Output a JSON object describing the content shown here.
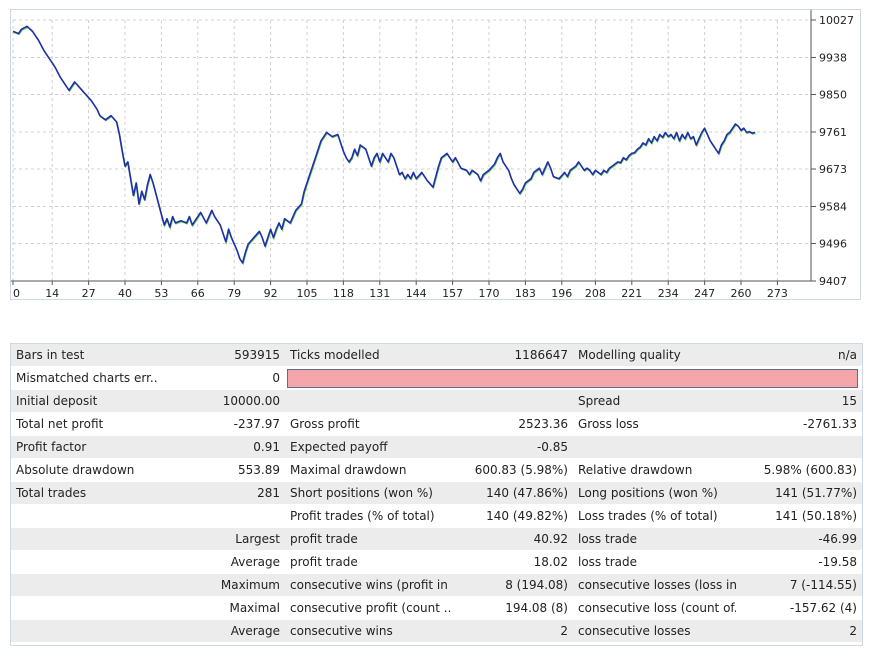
{
  "chart": {
    "y_ticks": [
      "10027",
      "9938",
      "9850",
      "9761",
      "9673",
      "9584",
      "9496",
      "9407"
    ],
    "x_ticks": [
      "0",
      "14",
      "27",
      "40",
      "53",
      "66",
      "79",
      "92",
      "105",
      "118",
      "131",
      "144",
      "157",
      "170",
      "183",
      "196",
      "208",
      "221",
      "234",
      "247",
      "260",
      "273"
    ],
    "colors": {
      "balance": "#1f2fa8",
      "equity": "#66cc55",
      "grid": "#d0d0d0"
    }
  },
  "chart_data": {
    "type": "line",
    "y_range": [
      9407,
      10027
    ],
    "x_range": [
      0,
      285
    ],
    "grid": true,
    "series": [
      {
        "values": [
          [
            0,
            10000
          ],
          [
            2,
            9995
          ],
          [
            3,
            10005
          ],
          [
            5,
            10012
          ],
          [
            7,
            10000
          ],
          [
            9,
            9980
          ],
          [
            11,
            9955
          ],
          [
            13,
            9935
          ],
          [
            15,
            9915
          ],
          [
            17,
            9890
          ],
          [
            19,
            9870
          ],
          [
            20,
            9860
          ],
          [
            22,
            9880
          ],
          [
            24,
            9865
          ],
          [
            26,
            9850
          ],
          [
            28,
            9835
          ],
          [
            30,
            9815
          ],
          [
            31,
            9800
          ],
          [
            33,
            9790
          ],
          [
            35,
            9800
          ],
          [
            37,
            9785
          ],
          [
            38,
            9755
          ],
          [
            39,
            9715
          ],
          [
            40,
            9680
          ],
          [
            41,
            9690
          ],
          [
            42,
            9650
          ],
          [
            43,
            9610
          ],
          [
            44,
            9640
          ],
          [
            45,
            9590
          ],
          [
            46,
            9620
          ],
          [
            47,
            9600
          ],
          [
            48,
            9635
          ],
          [
            49,
            9660
          ],
          [
            50,
            9640
          ],
          [
            51,
            9615
          ],
          [
            52,
            9590
          ],
          [
            53,
            9565
          ],
          [
            54,
            9540
          ],
          [
            55,
            9555
          ],
          [
            56,
            9535
          ],
          [
            57,
            9560
          ],
          [
            58,
            9545
          ],
          [
            60,
            9550
          ],
          [
            62,
            9545
          ],
          [
            63,
            9560
          ],
          [
            64,
            9540
          ],
          [
            65,
            9550
          ],
          [
            67,
            9570
          ],
          [
            69,
            9545
          ],
          [
            71,
            9575
          ],
          [
            72,
            9560
          ],
          [
            74,
            9540
          ],
          [
            75,
            9520
          ],
          [
            76,
            9500
          ],
          [
            77,
            9530
          ],
          [
            78,
            9510
          ],
          [
            79,
            9495
          ],
          [
            80,
            9480
          ],
          [
            81,
            9460
          ],
          [
            82,
            9450
          ],
          [
            83,
            9475
          ],
          [
            84,
            9495
          ],
          [
            86,
            9510
          ],
          [
            88,
            9525
          ],
          [
            89,
            9510
          ],
          [
            90,
            9490
          ],
          [
            91,
            9510
          ],
          [
            92,
            9530
          ],
          [
            93,
            9510
          ],
          [
            94,
            9530
          ],
          [
            95,
            9545
          ],
          [
            96,
            9530
          ],
          [
            97,
            9555
          ],
          [
            99,
            9545
          ],
          [
            100,
            9560
          ],
          [
            101,
            9575
          ],
          [
            103,
            9590
          ],
          [
            104,
            9620
          ],
          [
            106,
            9660
          ],
          [
            108,
            9700
          ],
          [
            110,
            9740
          ],
          [
            112,
            9760
          ],
          [
            114,
            9750
          ],
          [
            116,
            9755
          ],
          [
            117,
            9735
          ],
          [
            118,
            9715
          ],
          [
            119,
            9700
          ],
          [
            120,
            9690
          ],
          [
            121,
            9700
          ],
          [
            122,
            9720
          ],
          [
            123,
            9705
          ],
          [
            124,
            9730
          ],
          [
            126,
            9720
          ],
          [
            127,
            9700
          ],
          [
            128,
            9680
          ],
          [
            129,
            9700
          ],
          [
            130,
            9710
          ],
          [
            131,
            9690
          ],
          [
            132,
            9710
          ],
          [
            133,
            9700
          ],
          [
            134,
            9690
          ],
          [
            135,
            9710
          ],
          [
            136,
            9700
          ],
          [
            137,
            9680
          ],
          [
            138,
            9660
          ],
          [
            139,
            9665
          ],
          [
            140,
            9650
          ],
          [
            141,
            9660
          ],
          [
            142,
            9650
          ],
          [
            143,
            9665
          ],
          [
            144,
            9650
          ],
          [
            146,
            9665
          ],
          [
            148,
            9645
          ],
          [
            150,
            9630
          ],
          [
            151,
            9655
          ],
          [
            152,
            9680
          ],
          [
            153,
            9700
          ],
          [
            155,
            9710
          ],
          [
            157,
            9690
          ],
          [
            158,
            9700
          ],
          [
            160,
            9675
          ],
          [
            162,
            9670
          ],
          [
            163,
            9660
          ],
          [
            164,
            9670
          ],
          [
            166,
            9660
          ],
          [
            167,
            9645
          ],
          [
            168,
            9660
          ],
          [
            170,
            9670
          ],
          [
            172,
            9685
          ],
          [
            173,
            9700
          ],
          [
            174,
            9710
          ],
          [
            175,
            9690
          ],
          [
            177,
            9670
          ],
          [
            178,
            9650
          ],
          [
            179,
            9635
          ],
          [
            181,
            9615
          ],
          [
            182,
            9625
          ],
          [
            183,
            9640
          ],
          [
            185,
            9650
          ],
          [
            186,
            9665
          ],
          [
            188,
            9675
          ],
          [
            189,
            9660
          ],
          [
            190,
            9675
          ],
          [
            191,
            9690
          ],
          [
            192,
            9675
          ],
          [
            193,
            9655
          ],
          [
            195,
            9650
          ],
          [
            197,
            9665
          ],
          [
            198,
            9655
          ],
          [
            199,
            9670
          ],
          [
            201,
            9680
          ],
          [
            202,
            9690
          ],
          [
            203,
            9680
          ],
          [
            204,
            9670
          ],
          [
            205,
            9675
          ],
          [
            206,
            9670
          ],
          [
            207,
            9660
          ],
          [
            208,
            9670
          ],
          [
            209,
            9665
          ],
          [
            210,
            9660
          ],
          [
            211,
            9670
          ],
          [
            212,
            9665
          ],
          [
            213,
            9675
          ],
          [
            214,
            9680
          ],
          [
            215,
            9685
          ],
          [
            216,
            9690
          ],
          [
            217,
            9688
          ],
          [
            218,
            9700
          ],
          [
            219,
            9695
          ],
          [
            220,
            9705
          ],
          [
            221,
            9710
          ],
          [
            222,
            9712
          ],
          [
            223,
            9720
          ],
          [
            224,
            9725
          ],
          [
            225,
            9735
          ],
          [
            226,
            9730
          ],
          [
            227,
            9745
          ],
          [
            228,
            9735
          ],
          [
            229,
            9750
          ],
          [
            230,
            9740
          ],
          [
            231,
            9755
          ],
          [
            232,
            9748
          ],
          [
            233,
            9760
          ],
          [
            234,
            9750
          ],
          [
            235,
            9755
          ],
          [
            236,
            9745
          ],
          [
            237,
            9760
          ],
          [
            238,
            9740
          ],
          [
            239,
            9755
          ],
          [
            240,
            9745
          ],
          [
            241,
            9760
          ],
          [
            242,
            9745
          ],
          [
            243,
            9750
          ],
          [
            244,
            9730
          ],
          [
            245,
            9745
          ],
          [
            246,
            9760
          ],
          [
            247,
            9770
          ],
          [
            248,
            9755
          ],
          [
            249,
            9740
          ],
          [
            250,
            9730
          ],
          [
            251,
            9720
          ],
          [
            252,
            9710
          ],
          [
            253,
            9730
          ],
          [
            254,
            9740
          ],
          [
            255,
            9755
          ],
          [
            256,
            9760
          ],
          [
            257,
            9770
          ],
          [
            258,
            9780
          ],
          [
            259,
            9775
          ],
          [
            260,
            9765
          ],
          [
            261,
            9770
          ],
          [
            262,
            9760
          ],
          [
            263,
            9762
          ],
          [
            264,
            9758
          ],
          [
            265,
            9760
          ]
        ]
      }
    ]
  },
  "stats": {
    "rows": [
      [
        "Bars in test",
        "593915",
        "Ticks modelled",
        "1186647",
        "Modelling quality",
        "n/a"
      ],
      [
        "Mismatched charts err...",
        "0",
        "",
        "",
        "",
        ""
      ],
      [
        "Initial deposit",
        "10000.00",
        "",
        "",
        "Spread",
        "15"
      ],
      [
        "Total net profit",
        "-237.97",
        "Gross profit",
        "2523.36",
        "Gross loss",
        "-2761.33"
      ],
      [
        "Profit factor",
        "0.91",
        "Expected payoff",
        "-0.85",
        "",
        ""
      ],
      [
        "Absolute drawdown",
        "553.89",
        "Maximal drawdown",
        "600.83 (5.98%)",
        "Relative drawdown",
        "5.98% (600.83)"
      ],
      [
        "Total trades",
        "281",
        "Short positions (won %)",
        "140 (47.86%)",
        "Long positions (won %)",
        "141 (51.77%)"
      ],
      [
        "",
        "",
        "Profit trades (% of total)",
        "140 (49.82%)",
        "Loss trades (% of total)",
        "141 (50.18%)"
      ],
      [
        "",
        "Largest",
        "profit trade",
        "40.92",
        "loss trade",
        "-46.99"
      ],
      [
        "",
        "Average",
        "profit trade",
        "18.02",
        "loss trade",
        "-19.58"
      ],
      [
        "",
        "Maximum",
        "consecutive wins (profit in ...",
        "8 (194.08)",
        "consecutive losses (loss in ...",
        "7 (-114.55)"
      ],
      [
        "",
        "Maximal",
        "consecutive profit (count ...",
        "194.08 (8)",
        "consecutive loss (count of...",
        "-157.62 (4)"
      ],
      [
        "",
        "Average",
        "consecutive wins",
        "2",
        "consecutive losses",
        "2"
      ]
    ]
  }
}
